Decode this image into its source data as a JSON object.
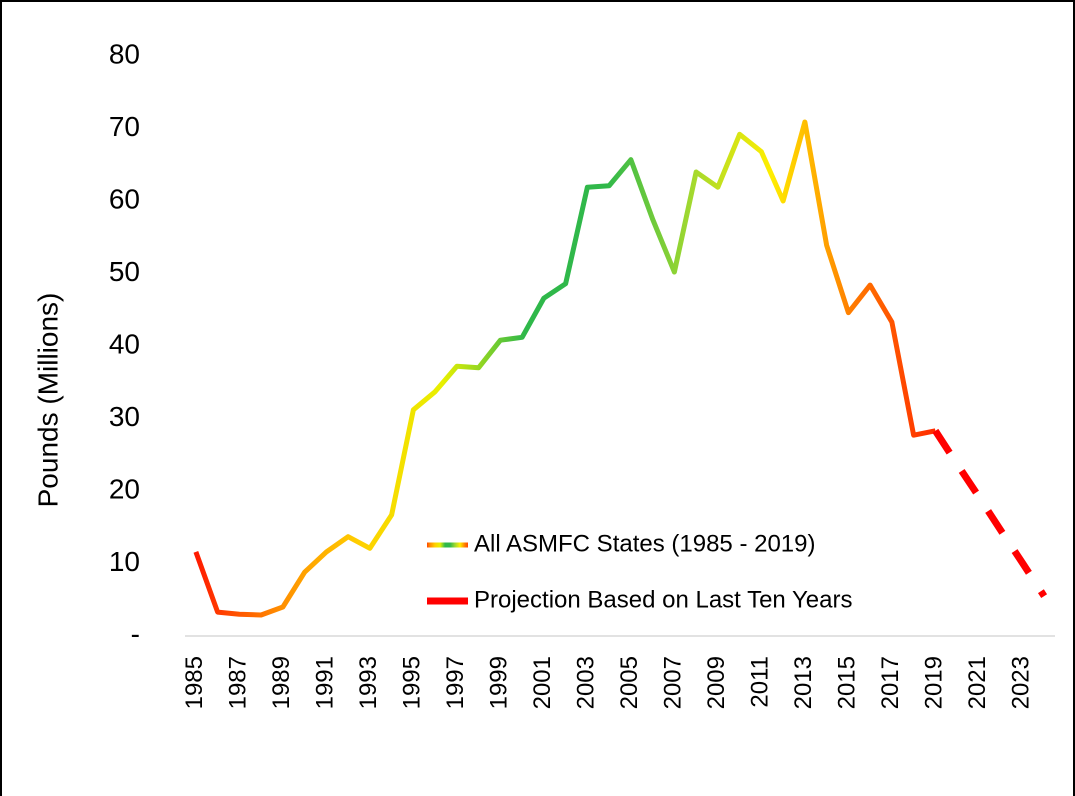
{
  "chart_data": {
    "type": "line",
    "y_label": "Pounds (Millions)",
    "x": [
      1985,
      1986,
      1987,
      1988,
      1989,
      1990,
      1991,
      1992,
      1993,
      1994,
      1995,
      1996,
      1997,
      1998,
      1999,
      2000,
      2001,
      2002,
      2003,
      2004,
      2005,
      2006,
      2007,
      2008,
      2009,
      2010,
      2011,
      2012,
      2013,
      2014,
      2015,
      2016,
      2017,
      2018,
      2019,
      2020,
      2021,
      2022,
      2023,
      2024
    ],
    "xlim": [
      1984.5,
      2024.5
    ],
    "xticks": [
      1985,
      1987,
      1989,
      1991,
      1993,
      1995,
      1997,
      1999,
      2001,
      2003,
      2005,
      2007,
      2009,
      2011,
      2013,
      2015,
      2017,
      2019,
      2021,
      2023
    ],
    "ylim": [
      0,
      80
    ],
    "yticks": [
      {
        "value": 0,
        "label": "-"
      },
      10,
      20,
      30,
      40,
      50,
      60,
      70,
      80
    ],
    "grid": false,
    "series": [
      {
        "name": "All ASMFC States (1985 - 2019)",
        "colors": [
          "#ff1a00",
          "#ff8c00",
          "#ffd000",
          "#e8f000",
          "#2fb84a",
          "#30b84a",
          "#9fd830",
          "#ffee00",
          "#ff7a00",
          "#ff2a00"
        ],
        "dash": false,
        "values": [
          11.6,
          3.3,
          3.0,
          2.9,
          4.0,
          8.8,
          11.6,
          13.7,
          12.1,
          16.7,
          31.2,
          33.7,
          37.2,
          37.0,
          40.8,
          41.2,
          46.6,
          48.6,
          61.9,
          62.1,
          65.7,
          57.5,
          50.2,
          64.0,
          61.9,
          69.2,
          66.8,
          60.0,
          70.9,
          53.9,
          44.6,
          48.4,
          43.3,
          27.7,
          28.3,
          null,
          null,
          null,
          null,
          null
        ]
      },
      {
        "name": "Projection Based on Last Ten Years",
        "color": "#ff0000",
        "dash": true,
        "values": [
          null,
          null,
          null,
          null,
          null,
          null,
          null,
          null,
          null,
          null,
          null,
          null,
          null,
          null,
          null,
          null,
          null,
          null,
          null,
          null,
          null,
          null,
          null,
          null,
          null,
          null,
          null,
          null,
          null,
          null,
          null,
          null,
          null,
          null,
          28.3,
          23.7,
          19.2,
          14.6,
          10.1,
          5.5
        ]
      }
    ]
  }
}
